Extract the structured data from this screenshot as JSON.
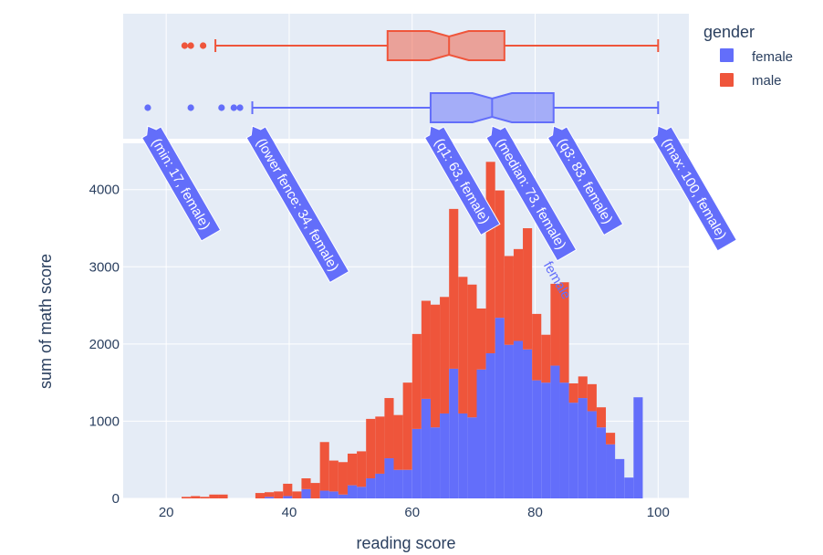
{
  "chart_data": [
    {
      "type": "box",
      "orientation": "horizontal",
      "notched": true,
      "series": [
        {
          "name": "female",
          "color": "#636efa",
          "min": 17,
          "lower_fence": 34,
          "q1": 63,
          "median": 73,
          "q3": 83,
          "max": 100,
          "outliers": [
            17,
            24,
            29,
            31,
            32
          ]
        },
        {
          "name": "male",
          "color": "#ef553b",
          "min": 23,
          "lower_fence": 28,
          "q1": 56,
          "median": 66,
          "q3": 75,
          "max": 100,
          "outliers": [
            23,
            24,
            26
          ]
        }
      ]
    },
    {
      "type": "bar",
      "barmode": "stack",
      "xlabel": "reading score",
      "ylabel": "sum of math score",
      "xlim": [
        13,
        105
      ],
      "ylim": [
        0,
        4600
      ],
      "x_ticks": [
        20,
        40,
        60,
        80,
        100
      ],
      "y_ticks": [
        0,
        1000,
        2000,
        3000,
        4000
      ],
      "grid": true,
      "bin_start": 16.5,
      "bin_width": 1.5,
      "series": [
        {
          "name": "female",
          "color": "#636efa",
          "values": [
            0,
            0,
            0,
            0,
            0,
            0,
            0,
            0,
            0,
            0,
            0,
            0,
            0,
            20,
            0,
            30,
            0,
            120,
            0,
            100,
            90,
            50,
            170,
            150,
            260,
            320,
            520,
            370,
            370,
            900,
            1290,
            920,
            1100,
            1680,
            1100,
            1050,
            1670,
            1880,
            2340,
            1990,
            2040,
            1930,
            1530,
            1500,
            1720,
            1500,
            1240,
            1300,
            1130,
            920,
            700,
            510,
            270,
            1310
          ]
        },
        {
          "name": "male",
          "color": "#ef553b",
          "values": [
            0,
            0,
            0,
            0,
            20,
            30,
            20,
            50,
            50,
            0,
            0,
            0,
            70,
            60,
            90,
            160,
            90,
            140,
            200,
            630,
            400,
            420,
            410,
            460,
            770,
            740,
            780,
            710,
            1130,
            1230,
            1270,
            1590,
            1510,
            2070,
            1770,
            1720,
            790,
            2480,
            1650,
            1150,
            1190,
            1570,
            860,
            620,
            1060,
            1300,
            250,
            280,
            350,
            260,
            150,
            0,
            0,
            0
          ]
        }
      ]
    }
  ],
  "legend": {
    "title": "gender",
    "items": [
      {
        "label": "female",
        "color": "#636efa"
      },
      {
        "label": "male",
        "color": "#ef553b"
      }
    ]
  },
  "hover_labels": [
    {
      "text": "(min: 17, female)",
      "value": 17
    },
    {
      "text": "(lower fence: 34, female)",
      "value": 34
    },
    {
      "text": "(q1: 63, female)",
      "value": 63
    },
    {
      "text": "(median: 73, female)",
      "value": 73
    },
    {
      "text": "(q3: 83, female)",
      "value": 83
    },
    {
      "text": "(max: 100, female)",
      "value": 100
    }
  ],
  "hover_trace_name": "female",
  "colors": {
    "plot_bg": "#e5ecf6",
    "grid": "#ffffff",
    "female": "#636efa",
    "male": "#ef553b"
  }
}
